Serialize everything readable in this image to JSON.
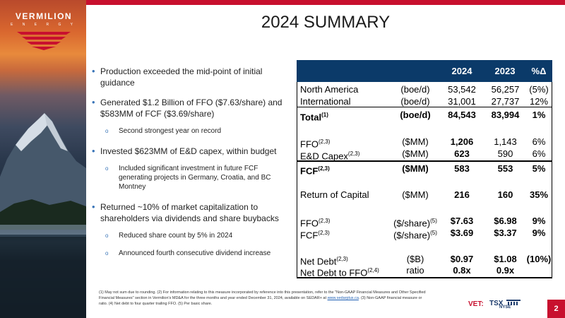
{
  "brand": {
    "name": "VERMILION",
    "sub": "E N E R G Y"
  },
  "title": "2024 SUMMARY",
  "bullets": {
    "b1": "Production exceeded the mid-point of initial guidance",
    "b2": "Generated $1.2 Billion of FFO ($7.63/share) and $583MM of FCF ($3.69/share)",
    "b2a": "Second strongest year on record",
    "b3": "Invested $623MM of E&D capex, within budget",
    "b3a": "Included significant investment in future FCF generating projects in Germany, Croatia, and BC Montney",
    "b4": "Returned ~10% of market capitalization to shareholders via dividends and share buybacks",
    "b4a": "Reduced share count by 5% in 2024",
    "b4b": "Announced fourth consecutive dividend increase"
  },
  "table": {
    "headers": {
      "y2024": "2024",
      "y2023": "2023",
      "pct": "%Δ"
    },
    "rows": {
      "na": {
        "label": "North America",
        "unit": "(boe/d)",
        "v2024": "53,542",
        "v2023": "56,257",
        "pct": "(5%)"
      },
      "intl": {
        "label": "International",
        "unit": "(boe/d)",
        "v2024": "31,001",
        "v2023": "27,737",
        "pct": "12%"
      },
      "total": {
        "label": "Total",
        "sup": "(1)",
        "unit": "(boe/d)",
        "v2024": "84,543",
        "v2023": "83,994",
        "pct": "1%"
      },
      "ffo": {
        "label": "FFO",
        "sup": "(2,3)",
        "unit": "($MM)",
        "v2024": "1,206",
        "v2023": "1,143",
        "pct": "6%"
      },
      "capex": {
        "label": "E&D Capex",
        "sup": "(2,3)",
        "unit": "($MM)",
        "v2024": "623",
        "v2023": "590",
        "pct": "6%"
      },
      "fcf": {
        "label": "FCF",
        "sup": "(2,3)",
        "unit": "($MM)",
        "v2024": "583",
        "v2023": "553",
        "pct": "5%"
      },
      "roc": {
        "label": "Return of Capital",
        "unit": "($MM)",
        "v2024": "216",
        "v2023": "160",
        "pct": "35%"
      },
      "ffo_share": {
        "label": "FFO",
        "sup": "(2,3)",
        "unit": "($/share)",
        "unit_sup": "(5)",
        "v2024": "$7.63",
        "v2023": "$6.98",
        "pct": "9%"
      },
      "fcf_share": {
        "label": "FCF",
        "sup": "(2,3)",
        "unit": "($/share)",
        "unit_sup": "(5)",
        "v2024": "$3.69",
        "v2023": "$3.37",
        "pct": "9%"
      },
      "net_debt": {
        "label": "Net Debt",
        "sup": "(2,3)",
        "unit": "($B)",
        "v2024": "$0.97",
        "v2023": "$1.08",
        "pct": "(10%)"
      },
      "nd_ffo": {
        "label": "Net Debt to FFO",
        "sup": "(2,4)",
        "unit": "ratio",
        "v2024": "0.8x",
        "v2023": "0.9x",
        "pct": ""
      }
    }
  },
  "footnote": {
    "pre": "(1) May not sum due to rounding. (2) For information relating to this measure incorporated by reference into this presentation, refer to the \"Non-GAAP Financial Measures and Other Specified Financial Measures\" section in Vermilion's MD&A for the three months and year ended December 31, 2024, available on SEDAR+ at ",
    "link": "www.sedarplus.ca",
    "post": ". (3) Non-GAAP financial measure or ratio. (4) Net debt to four quarter trailing FFO. (5) Per basic share."
  },
  "exchanges": {
    "label": "VET:",
    "tsx": "TSX",
    "nyse": "NYSE"
  },
  "page_number": "2",
  "colors": {
    "brand_red": "#c8102e",
    "table_header": "#0b3a69",
    "bullet_blue": "#3a75b8"
  }
}
